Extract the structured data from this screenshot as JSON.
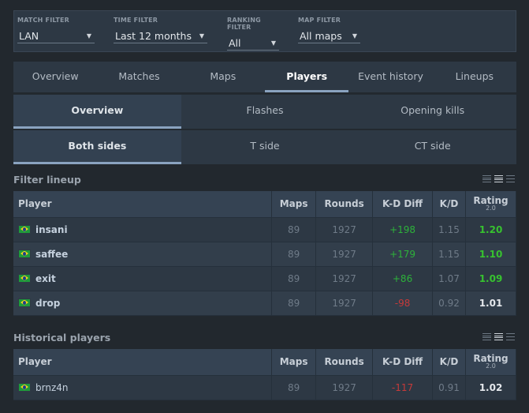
{
  "filters": [
    {
      "label": "MATCH FILTER",
      "value": "LAN"
    },
    {
      "label": "TIME FILTER",
      "value": "Last 12 months"
    },
    {
      "label": "RANKING FILTER",
      "value": "All"
    },
    {
      "label": "MAP FILTER",
      "value": "All maps"
    }
  ],
  "main_tabs": [
    "Overview",
    "Matches",
    "Maps",
    "Players",
    "Event history",
    "Lineups"
  ],
  "main_tabs_active": "Players",
  "stat_tabs": [
    "Overview",
    "Flashes",
    "Opening kills"
  ],
  "stat_tabs_active": "Overview",
  "side_tabs": [
    "Both sides",
    "T side",
    "CT side"
  ],
  "side_tabs_active": "Both sides",
  "columns": {
    "player": "Player",
    "maps": "Maps",
    "rounds": "Rounds",
    "kd_diff": "K-D Diff",
    "kd": "K/D",
    "rating": "Rating",
    "rating_version": "2.0"
  },
  "lineup": {
    "title": "Filter lineup",
    "rows": [
      {
        "player": "insani",
        "maps": "89",
        "rounds": "1927",
        "kd_diff": "+198",
        "kd": "1.15",
        "rating": "1.20"
      },
      {
        "player": "saffee",
        "maps": "89",
        "rounds": "1927",
        "kd_diff": "+179",
        "kd": "1.15",
        "rating": "1.10"
      },
      {
        "player": "exit",
        "maps": "89",
        "rounds": "1927",
        "kd_diff": "+86",
        "kd": "1.07",
        "rating": "1.09"
      },
      {
        "player": "drop",
        "maps": "89",
        "rounds": "1927",
        "kd_diff": "-98",
        "kd": "0.92",
        "rating": "1.01"
      }
    ]
  },
  "historical": {
    "title": "Historical players",
    "rows": [
      {
        "player": "brnz4n",
        "maps": "89",
        "rounds": "1927",
        "kd_diff": "-117",
        "kd": "0.91",
        "rating": "1.02"
      }
    ]
  },
  "colors": {
    "positive": "#2db23a",
    "negative": "#c53a3a",
    "accent": "#8aa3c0"
  }
}
